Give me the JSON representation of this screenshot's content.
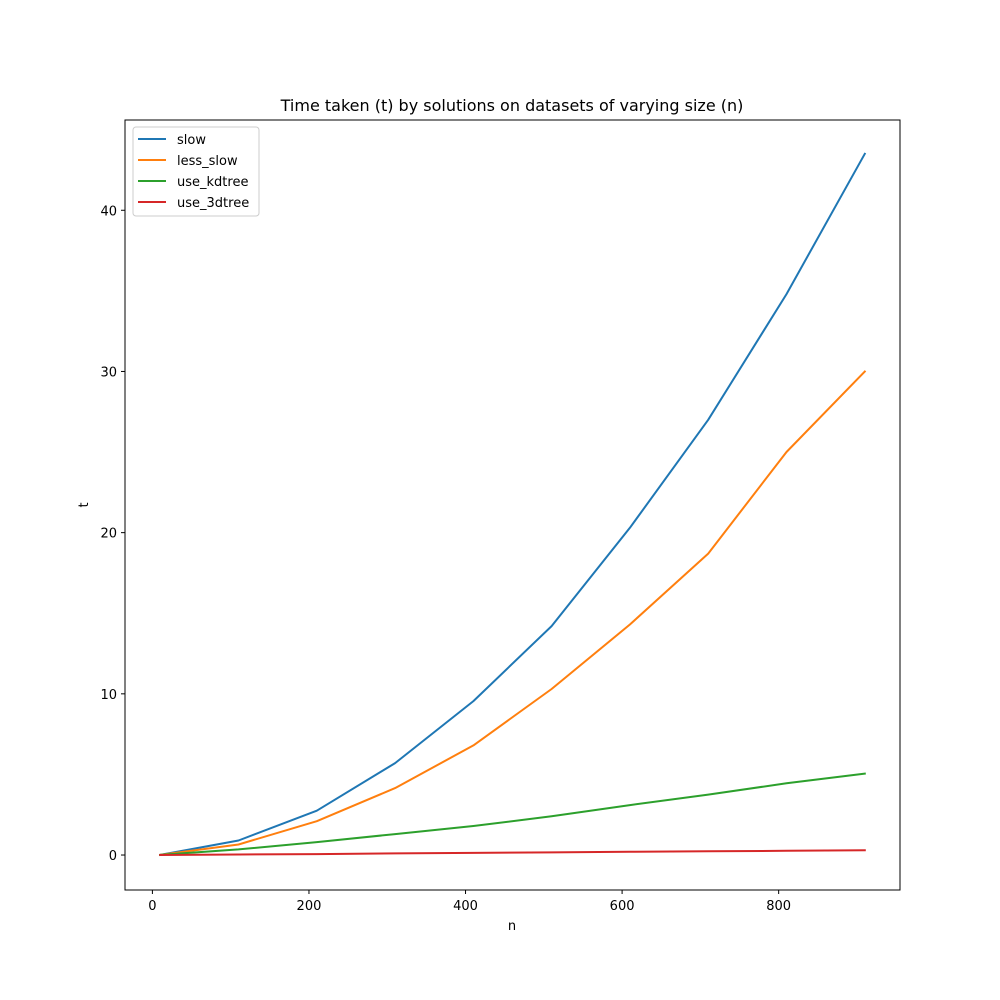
{
  "chart_data": {
    "type": "line",
    "title": "Time taken (t) by solutions on datasets of varying size (n)",
    "xlabel": "n",
    "ylabel": "t",
    "xlim": [
      -35,
      955
    ],
    "ylim": [
      -2.17,
      45.6
    ],
    "xticks": [
      0,
      200,
      400,
      600,
      800
    ],
    "yticks": [
      0,
      10,
      20,
      30,
      40
    ],
    "grid": false,
    "legend_position": "top-left",
    "x": [
      10,
      110,
      210,
      310,
      410,
      510,
      610,
      710,
      810,
      910
    ],
    "series": [
      {
        "name": "slow",
        "color": "#1f77b4",
        "values": [
          0.01,
          0.9,
          2.75,
          5.7,
          9.55,
          14.2,
          20.3,
          27.0,
          34.8,
          43.5
        ]
      },
      {
        "name": "less_slow",
        "color": "#ff7f0e",
        "values": [
          0.01,
          0.65,
          2.1,
          4.15,
          6.8,
          10.3,
          14.3,
          18.7,
          25.0,
          30.0
        ]
      },
      {
        "name": "use_kdtree",
        "color": "#2ca02c",
        "values": [
          0.01,
          0.35,
          0.8,
          1.3,
          1.8,
          2.4,
          3.1,
          3.75,
          4.45,
          5.05
        ]
      },
      {
        "name": "use_3dtree",
        "color": "#d62728",
        "values": [
          0.0,
          0.03,
          0.06,
          0.1,
          0.13,
          0.16,
          0.2,
          0.23,
          0.26,
          0.29
        ]
      }
    ]
  }
}
